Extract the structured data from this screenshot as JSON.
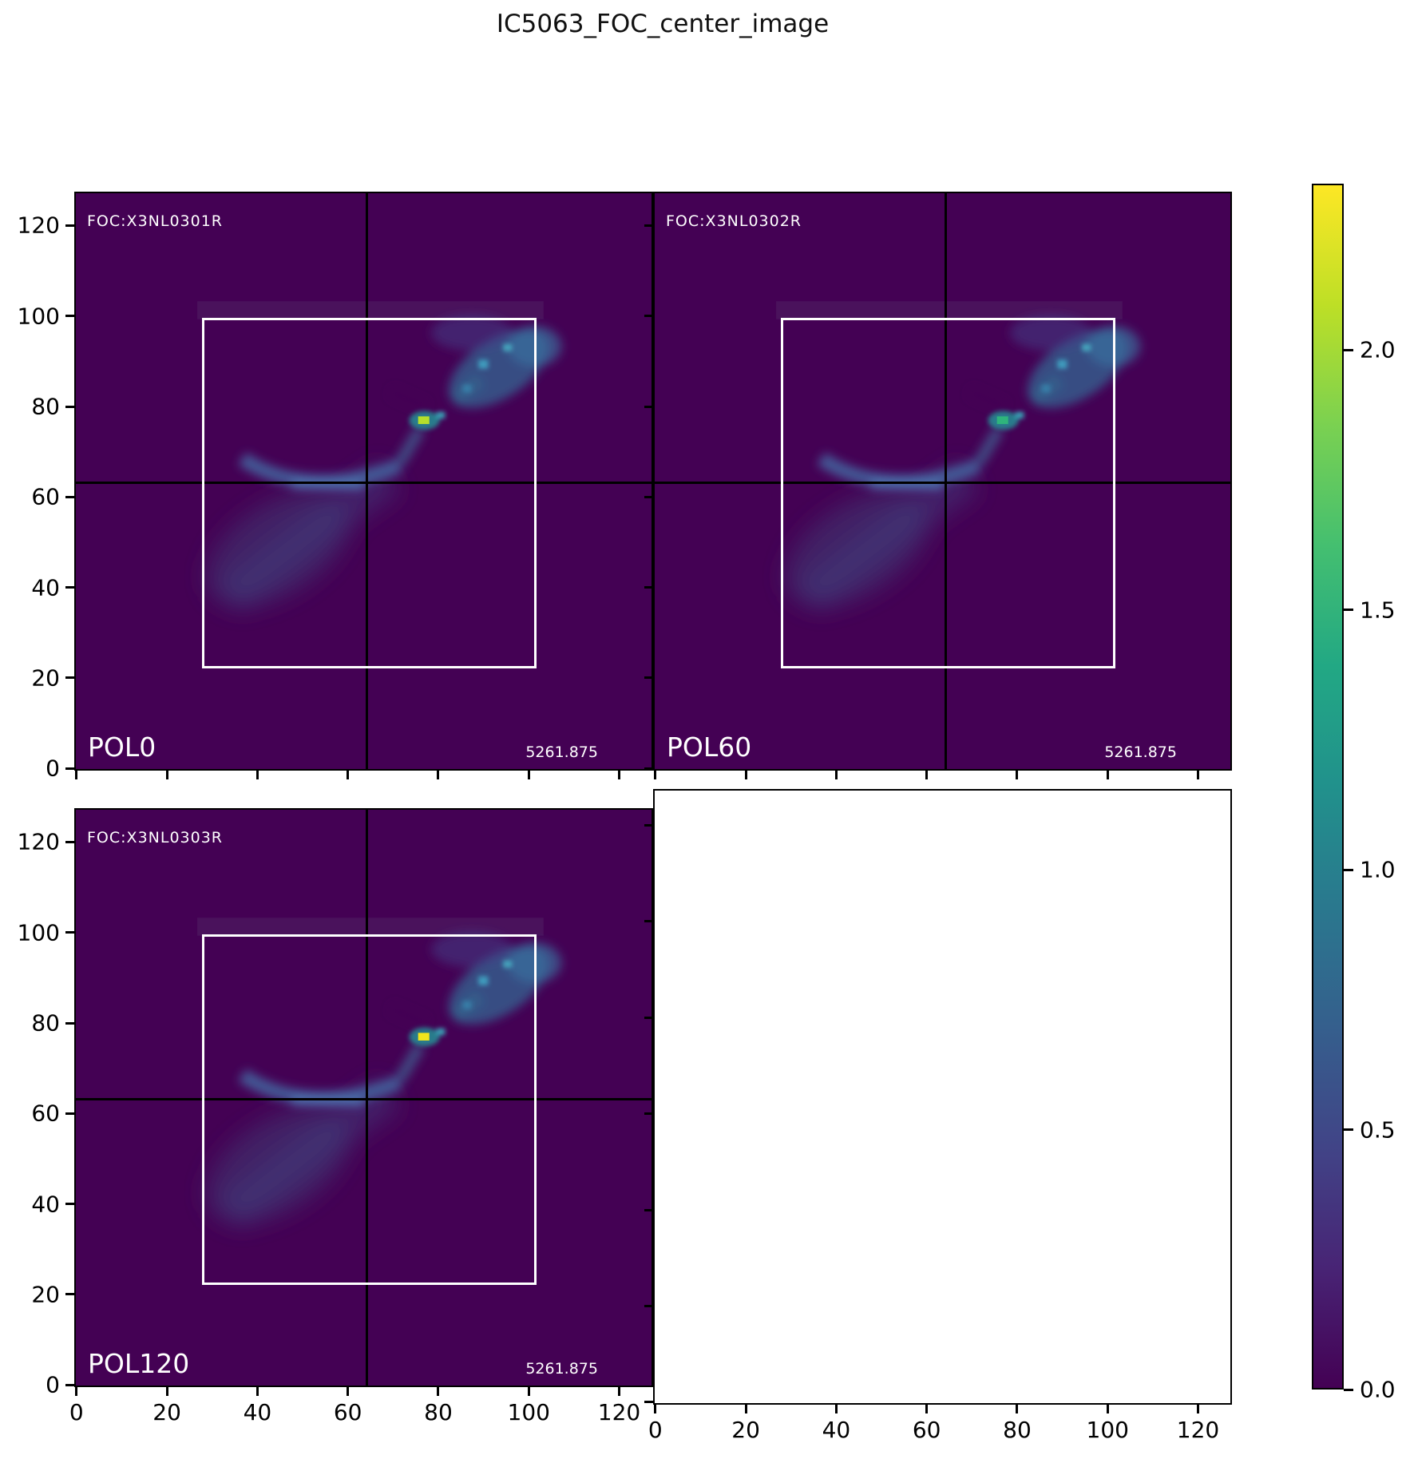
{
  "title": "IC5063_FOC_center_image",
  "panels": [
    {
      "key": "pol0",
      "header": "FOC:X3NL0301R",
      "label": "POL0",
      "value": "5261.875",
      "nucleus_color": "#b5de2b"
    },
    {
      "key": "pol60",
      "header": "FOC:X3NL0302R",
      "label": "POL60",
      "value": "5261.875",
      "nucleus_color": "#2fb47c"
    },
    {
      "key": "pol120",
      "header": "FOC:X3NL0303R",
      "label": "POL120",
      "value": "5261.875",
      "nucleus_color": "#f2e51d"
    }
  ],
  "axes": {
    "tick_values": [
      0,
      20,
      40,
      60,
      80,
      100,
      120
    ],
    "tick_labels": [
      "0",
      "20",
      "40",
      "60",
      "80",
      "100",
      "120"
    ],
    "data_min": -0.5,
    "data_max": 127.5
  },
  "colorbar": {
    "colormap": "viridis",
    "vmin": 0.0,
    "vmax": 2.32,
    "tick_values": [
      0.0,
      0.5,
      1.0,
      1.5,
      2.0
    ],
    "tick_labels": [
      "0.0",
      "0.5",
      "1.0",
      "1.5",
      "2.0"
    ]
  },
  "colors": {
    "image_background": "#440154",
    "figure_background": "#ffffff",
    "crosshair": "#000000",
    "roi_box": "#ffffff",
    "colorbar_max": "#fde725"
  },
  "chart_data": {
    "type": "heatmap",
    "title": "IC5063_FOC_center_image",
    "colormap": "viridis",
    "layout": "2x2 grid of square image panels sharing axes, plus vertical colorbar at right; bottom-right panel is empty/white",
    "xlim": [
      -0.5,
      127.5
    ],
    "ylim": [
      -0.5,
      127.5
    ],
    "x_ticks": [
      0,
      20,
      40,
      60,
      80,
      100,
      120
    ],
    "y_ticks": [
      0,
      20,
      40,
      60,
      80,
      100,
      120
    ],
    "colorbar": {
      "vmin": 0.0,
      "vmax": 2.32,
      "ticks": [
        0.0,
        0.5,
        1.0,
        1.5,
        2.0
      ]
    },
    "panels": [
      {
        "position": "top-left",
        "pol_label": "POL0",
        "dataset_label": "FOC:X3NL0301R",
        "annotation_value": "5261.875",
        "peak_xy": [
          77,
          77
        ],
        "peak_value": 2.0
      },
      {
        "position": "top-right",
        "pol_label": "POL60",
        "dataset_label": "FOC:X3NL0302R",
        "annotation_value": "5261.875",
        "peak_xy": [
          77,
          77
        ],
        "peak_value": 1.6
      },
      {
        "position": "bottom-left",
        "pol_label": "POL120",
        "dataset_label": "FOC:X3NL0303R",
        "annotation_value": "5261.875",
        "peak_xy": [
          76,
          78
        ],
        "peak_value": 2.3
      },
      {
        "position": "bottom-right",
        "content": "empty"
      }
    ],
    "overlays": {
      "crosshair_data_xy": [
        63.5,
        63.5
      ],
      "white_box_data": {
        "x0": 27.5,
        "x1": 100.5,
        "y0": 23.5,
        "y1": 100.0
      }
    },
    "description": "Three HST FOC polarizer images (POL0, POL60, POL120) of the IC5063 nucleus on a viridis scale 0-2.32; diagonal nebular emission runs from lower-left to upper-right with a bright compact nucleus near pixel (77,77), a faint curved arm near y=63-68 between x=37-72, and extended blue emission around (85-105, 82-95); black crosshair lines mark pixel 63.5 in x and y and a white box outlines pixels x 27.5-100.5, y 23.5-100."
  }
}
